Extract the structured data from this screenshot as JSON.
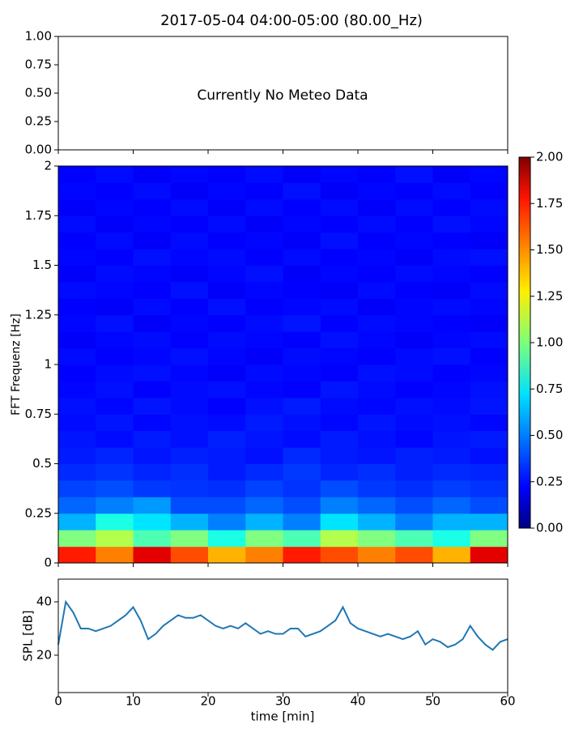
{
  "chart_data": [
    {
      "type": "empty",
      "title": "2017-05-04 04:00-05:00 (80.00_Hz)",
      "annotation": "Currently No Meteo Data",
      "xlim": [
        0,
        60
      ],
      "xticks": [
        0,
        10,
        20,
        30,
        40,
        50,
        60
      ],
      "ylim": [
        0,
        1
      ],
      "yticks": [
        {
          "value": 0,
          "label": "0.00"
        },
        {
          "value": 0.25,
          "label": "0.25"
        },
        {
          "value": 0.5,
          "label": "0.50"
        },
        {
          "value": 0.75,
          "label": "0.75"
        },
        {
          "value": 1,
          "label": "1.00"
        }
      ]
    },
    {
      "type": "heatmap",
      "ylabel": "FFT Frequenz [Hz]",
      "colormap": "jet",
      "xlim": [
        0,
        60
      ],
      "xticks": [
        0,
        10,
        20,
        30,
        40,
        50,
        60
      ],
      "ylim": [
        0,
        2
      ],
      "yticks": [
        0,
        0.25,
        0.5,
        0.75,
        1,
        1.25,
        1.5,
        1.75,
        2
      ],
      "clim": [
        0,
        2
      ],
      "cticks": [
        {
          "value": 0,
          "label": "0.00"
        },
        {
          "value": 0.25,
          "label": "0.25"
        },
        {
          "value": 0.5,
          "label": "0.50"
        },
        {
          "value": 0.75,
          "label": "0.75"
        },
        {
          "value": 1,
          "label": "1.00"
        },
        {
          "value": 1.25,
          "label": "1.25"
        },
        {
          "value": 1.5,
          "label": "1.50"
        },
        {
          "value": 1.75,
          "label": "1.75"
        },
        {
          "value": 2,
          "label": "2.00"
        }
      ],
      "x_bins": [
        0,
        5,
        10,
        15,
        20,
        25,
        30,
        35,
        40,
        45,
        50,
        55,
        60
      ],
      "y_bins": [
        0,
        0.083,
        0.167,
        0.25,
        0.333,
        0.417,
        0.5,
        0.583,
        0.667,
        0.75,
        0.833,
        0.917,
        1,
        1.083,
        1.167,
        1.25,
        1.333,
        1.417,
        1.5,
        1.583,
        1.667,
        1.75,
        1.833,
        1.917,
        2
      ],
      "values": [
        [
          1.7,
          1.5,
          1.8,
          1.6,
          1.4,
          1.5,
          1.7,
          1.6,
          1.5,
          1.6,
          1.4,
          1.8
        ],
        [
          1.0,
          1.1,
          0.9,
          1.0,
          0.8,
          1.0,
          0.9,
          1.1,
          1.0,
          0.9,
          0.8,
          1.0
        ],
        [
          0.6,
          0.8,
          0.7,
          0.6,
          0.5,
          0.6,
          0.5,
          0.7,
          0.6,
          0.5,
          0.6,
          0.6
        ],
        [
          0.45,
          0.5,
          0.55,
          0.4,
          0.4,
          0.45,
          0.4,
          0.5,
          0.45,
          0.4,
          0.45,
          0.4
        ],
        [
          0.38,
          0.4,
          0.36,
          0.35,
          0.34,
          0.38,
          0.35,
          0.4,
          0.36,
          0.34,
          0.37,
          0.35
        ],
        [
          0.33,
          0.35,
          0.32,
          0.34,
          0.3,
          0.33,
          0.36,
          0.32,
          0.34,
          0.31,
          0.33,
          0.32
        ],
        [
          0.3,
          0.32,
          0.29,
          0.31,
          0.3,
          0.28,
          0.33,
          0.3,
          0.29,
          0.31,
          0.3,
          0.28
        ],
        [
          0.29,
          0.27,
          0.3,
          0.28,
          0.31,
          0.29,
          0.27,
          0.3,
          0.28,
          0.26,
          0.29,
          0.3
        ],
        [
          0.27,
          0.29,
          0.26,
          0.28,
          0.27,
          0.3,
          0.28,
          0.26,
          0.29,
          0.27,
          0.28,
          0.26
        ],
        [
          0.28,
          0.26,
          0.29,
          0.27,
          0.25,
          0.28,
          0.3,
          0.27,
          0.26,
          0.28,
          0.27,
          0.29
        ],
        [
          0.26,
          0.28,
          0.25,
          0.27,
          0.28,
          0.26,
          0.25,
          0.29,
          0.27,
          0.25,
          0.26,
          0.28
        ],
        [
          0.25,
          0.27,
          0.28,
          0.26,
          0.24,
          0.27,
          0.26,
          0.25,
          0.28,
          0.27,
          0.25,
          0.26
        ],
        [
          0.27,
          0.25,
          0.26,
          0.28,
          0.26,
          0.24,
          0.27,
          0.26,
          0.25,
          0.27,
          0.28,
          0.25
        ],
        [
          0.24,
          0.26,
          0.27,
          0.25,
          0.27,
          0.26,
          0.25,
          0.28,
          0.26,
          0.24,
          0.26,
          0.27
        ],
        [
          0.26,
          0.28,
          0.24,
          0.26,
          0.25,
          0.27,
          0.29,
          0.25,
          0.27,
          0.26,
          0.25,
          0.24
        ],
        [
          0.25,
          0.24,
          0.27,
          0.25,
          0.28,
          0.25,
          0.26,
          0.27,
          0.24,
          0.26,
          0.27,
          0.26
        ],
        [
          0.27,
          0.26,
          0.25,
          0.28,
          0.24,
          0.26,
          0.25,
          0.24,
          0.27,
          0.25,
          0.24,
          0.27
        ],
        [
          0.24,
          0.27,
          0.26,
          0.24,
          0.26,
          0.28,
          0.24,
          0.26,
          0.25,
          0.27,
          0.26,
          0.25
        ],
        [
          0.26,
          0.25,
          0.28,
          0.26,
          0.27,
          0.25,
          0.27,
          0.25,
          0.26,
          0.24,
          0.27,
          0.28
        ],
        [
          0.25,
          0.27,
          0.24,
          0.27,
          0.25,
          0.26,
          0.24,
          0.28,
          0.25,
          0.26,
          0.25,
          0.24
        ],
        [
          0.27,
          0.24,
          0.26,
          0.25,
          0.27,
          0.24,
          0.26,
          0.25,
          0.27,
          0.25,
          0.28,
          0.26
        ],
        [
          0.24,
          0.26,
          0.25,
          0.27,
          0.24,
          0.27,
          0.25,
          0.27,
          0.24,
          0.27,
          0.25,
          0.27
        ],
        [
          0.26,
          0.25,
          0.27,
          0.24,
          0.26,
          0.25,
          0.28,
          0.24,
          0.26,
          0.25,
          0.27,
          0.25
        ],
        [
          0.25,
          0.27,
          0.24,
          0.26,
          0.25,
          0.27,
          0.24,
          0.26,
          0.25,
          0.28,
          0.24,
          0.26
        ]
      ]
    },
    {
      "type": "line",
      "xlabel": "time [min]",
      "ylabel": "SPL [dB]",
      "xlim": [
        0,
        60
      ],
      "xticks": [
        0,
        10,
        20,
        30,
        40,
        50,
        60
      ],
      "ylim": [
        6,
        48.5
      ],
      "yticks": [
        20,
        40
      ],
      "x": [
        0,
        1,
        2,
        3,
        4,
        5,
        6,
        7,
        8,
        9,
        10,
        11,
        12,
        13,
        14,
        15,
        16,
        17,
        18,
        19,
        20,
        21,
        22,
        23,
        24,
        25,
        26,
        27,
        28,
        29,
        30,
        31,
        32,
        33,
        34,
        35,
        36,
        37,
        38,
        39,
        40,
        41,
        42,
        43,
        44,
        45,
        46,
        47,
        48,
        49,
        50,
        51,
        52,
        53,
        54,
        55,
        56,
        57,
        58,
        59,
        60
      ],
      "series": [
        {
          "color": "#1f77b4",
          "values": [
            24,
            40,
            36,
            30,
            30,
            29,
            30,
            31,
            33,
            35,
            38,
            33,
            26,
            28,
            31,
            33,
            35,
            34,
            34,
            35,
            33,
            31,
            30,
            31,
            30,
            32,
            30,
            28,
            29,
            28,
            28,
            30,
            30,
            27,
            28,
            29,
            31,
            33,
            38,
            32,
            30,
            29,
            28,
            27,
            28,
            27,
            26,
            27,
            29,
            24,
            26,
            25,
            23,
            24,
            26,
            31,
            27,
            24,
            22,
            25,
            26
          ]
        }
      ]
    }
  ]
}
